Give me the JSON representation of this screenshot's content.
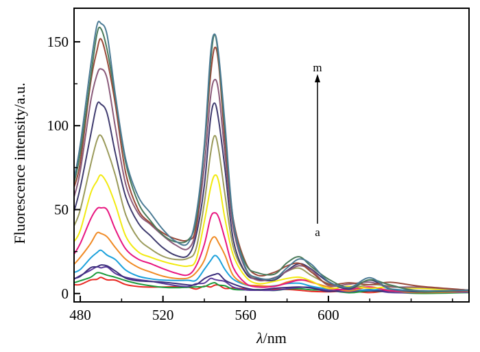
{
  "chart_data": {
    "type": "line",
    "title": "",
    "xlabel_italic": "λ",
    "xlabel_rest": "/nm",
    "ylabel": "Fluorescence intensity/a.u.",
    "xlim": [
      477,
      668
    ],
    "ylim": [
      -5,
      170
    ],
    "x_ticks": [
      480,
      520,
      560,
      600
    ],
    "x_minor_ticks": [
      500,
      540,
      580,
      620,
      640,
      660
    ],
    "y_ticks": [
      0,
      50,
      100,
      150
    ],
    "y_minor_ticks": [
      25,
      75,
      125
    ],
    "grid": false,
    "annotation": {
      "top_label": "m",
      "bottom_label": "a",
      "arrow": "up"
    },
    "x": [
      477,
      480,
      485,
      488,
      490,
      493,
      497,
      502,
      508,
      514,
      520,
      526,
      532,
      536,
      540,
      543,
      545,
      547,
      550,
      554,
      560,
      566,
      574,
      580,
      586,
      592,
      600,
      610,
      620,
      630,
      645,
      668
    ],
    "profiles": {
      "band_490": [
        0.38,
        0.5,
        0.82,
        0.97,
        1,
        0.93,
        0.72,
        0.45,
        0.3,
        0.24,
        0.19,
        0.15,
        0.12,
        0.1,
        0.08,
        0.06,
        0.05,
        0.04,
        0.03,
        0.02,
        0.01,
        0,
        0,
        0,
        0,
        0,
        0,
        0,
        0,
        0,
        0,
        0
      ],
      "band_545": [
        0,
        0,
        0,
        0,
        0,
        0,
        0,
        0,
        0,
        0,
        0,
        0.01,
        0.04,
        0.15,
        0.5,
        0.88,
        1,
        0.92,
        0.62,
        0.25,
        0.07,
        0.03,
        0.01,
        0,
        0,
        0,
        0,
        0,
        0,
        0,
        0,
        0
      ],
      "band_586": [
        0,
        0,
        0,
        0,
        0,
        0,
        0,
        0,
        0,
        0,
        0,
        0,
        0,
        0,
        0,
        0,
        0,
        0,
        0,
        0,
        0,
        0.05,
        0.3,
        0.75,
        1,
        0.7,
        0.2,
        0.12,
        0.28,
        0.15,
        0.05,
        0
      ],
      "baseline": [
        1,
        1,
        1,
        1,
        1,
        1,
        1,
        1,
        1,
        0.95,
        0.9,
        0.85,
        0.8,
        0.8,
        0.8,
        0.8,
        0.8,
        0.8,
        0.75,
        0.7,
        0.6,
        0.55,
        0.5,
        0.45,
        0.4,
        0.4,
        0.35,
        0.3,
        0.3,
        0.25,
        0.2,
        0.2
      ]
    },
    "series": [
      {
        "peak_490": 6,
        "peak_545": 2,
        "peak_586": 1,
        "baseline": 3,
        "color": "#e8251f"
      },
      {
        "peak_490": 9,
        "peak_545": 3,
        "peak_586": 1,
        "baseline": 3,
        "color": "#1a9a3a"
      },
      {
        "peak_490": 12,
        "peak_545": 5,
        "peak_586": 2,
        "baseline": 4,
        "color": "#5a3a9a"
      },
      {
        "peak_490": 13,
        "peak_545": 8,
        "peak_586": 3,
        "baseline": 4,
        "color": "#3c2e7c"
      },
      {
        "peak_490": 20,
        "peak_545": 17,
        "peak_586": 4,
        "baseline": 5,
        "color": "#1aa0db"
      },
      {
        "peak_490": 30,
        "peak_545": 27,
        "peak_586": 5,
        "baseline": 6,
        "color": "#f08a24"
      },
      {
        "peak_490": 46,
        "peak_545": 42,
        "peak_586": 6,
        "baseline": 6,
        "color": "#e8157f"
      },
      {
        "peak_490": 63,
        "peak_545": 62,
        "peak_586": 8,
        "baseline": 7,
        "color": "#f2ea10"
      },
      {
        "peak_490": 85,
        "peak_545": 82,
        "peak_586": 11,
        "baseline": 8,
        "color": "#9a9a5a"
      },
      {
        "peak_490": 105,
        "peak_545": 101,
        "peak_586": 13,
        "baseline": 9,
        "color": "#3e3a6e"
      },
      {
        "peak_490": 125,
        "peak_545": 115,
        "peak_586": 14,
        "baseline": 10,
        "color": "#8a5a7a"
      },
      {
        "peak_490": 140,
        "peak_545": 131,
        "peak_586": 15,
        "baseline": 10,
        "color": "#9a4a3a"
      },
      {
        "peak_490": 147,
        "peak_545": 137,
        "peak_586": 16,
        "baseline": 10,
        "color": "#4a7a5a"
      },
      {
        "peak_490": 153,
        "peak_545": 140,
        "peak_586": 16,
        "baseline": 10,
        "color": "#4a7a94"
      }
    ]
  }
}
